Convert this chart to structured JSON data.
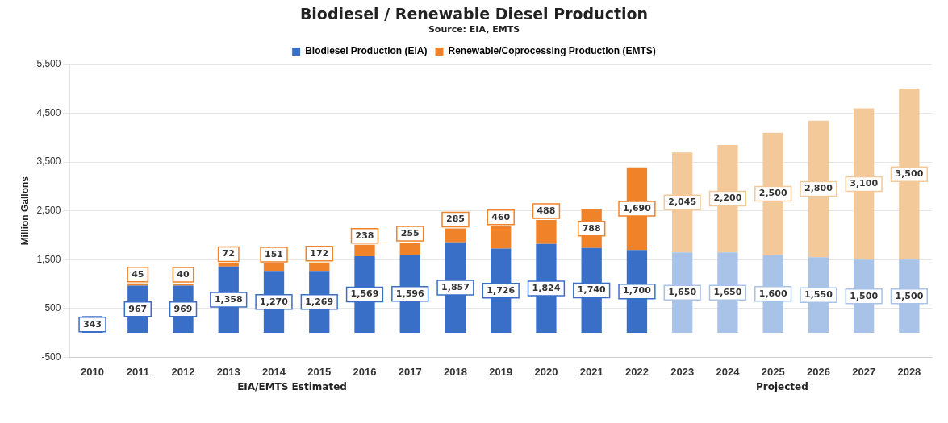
{
  "chart_data": {
    "type": "bar",
    "title": "Biodiesel / Renewable Diesel Production",
    "subtitle": "Source: EIA, EMTS",
    "ylabel": "Million Gallons",
    "categories": [
      "2010",
      "2011",
      "2012",
      "2013",
      "2014",
      "2015",
      "2016",
      "2017",
      "2018",
      "2019",
      "2020",
      "2021",
      "2022",
      "2023",
      "2024",
      "2025",
      "2026",
      "2027",
      "2028"
    ],
    "stacked": true,
    "grid": "y",
    "legend": "top",
    "ylim": [
      -500,
      5500
    ],
    "yticks": [
      {
        "value": -500,
        "label": "-500"
      },
      {
        "value": 500,
        "label": "500"
      },
      {
        "value": 1500,
        "label": "1,500"
      },
      {
        "value": 2500,
        "label": "2,500"
      },
      {
        "value": 3500,
        "label": "3,500"
      },
      {
        "value": 4500,
        "label": "4,500"
      },
      {
        "value": 5500,
        "label": "5,500"
      }
    ],
    "series": [
      {
        "name": "Biodiesel Production (EIA)",
        "color": "#3a6fc8",
        "colors": [
          "#3a6fc8",
          "#3a6fc8",
          "#3a6fc8",
          "#3a6fc8",
          "#3a6fc8",
          "#3a6fc8",
          "#3a6fc8",
          "#3a6fc8",
          "#3a6fc8",
          "#3a6fc8",
          "#3a6fc8",
          "#3a6fc8",
          "#3a6fc8",
          "#a9c3e8",
          "#a9c3e8",
          "#a9c3e8",
          "#a9c3e8",
          "#a9c3e8",
          "#a9c3e8"
        ],
        "values": [
          343,
          967,
          969,
          1358,
          1270,
          1269,
          1569,
          1596,
          1857,
          1726,
          1824,
          1740,
          1700,
          1650,
          1650,
          1600,
          1550,
          1500,
          1500
        ],
        "value_labels": [
          "343",
          "967",
          "969",
          "1,358",
          "1,270",
          "1,269",
          "1,569",
          "1,596",
          "1,857",
          "1,726",
          "1,824",
          "1,740",
          "1,700",
          "1,650",
          "1,650",
          "1,600",
          "1,550",
          "1,500",
          "1,500"
        ]
      },
      {
        "name": "Renewable/Coprocessing Production (EMTS)",
        "color": "#f0832a",
        "colors": [
          "#f0832a",
          "#f0832a",
          "#f0832a",
          "#f0832a",
          "#f0832a",
          "#f0832a",
          "#f0832a",
          "#f0832a",
          "#f0832a",
          "#f0832a",
          "#f0832a",
          "#f0832a",
          "#f0832a",
          "#f3c99a",
          "#f3c99a",
          "#f3c99a",
          "#f3c99a",
          "#f3c99a",
          "#f3c99a"
        ],
        "values": [
          null,
          45,
          40,
          72,
          151,
          172,
          238,
          255,
          285,
          460,
          488,
          788,
          1690,
          2045,
          2200,
          2500,
          2800,
          3100,
          3500
        ],
        "value_labels": [
          null,
          "45",
          "40",
          "72",
          "151",
          "172",
          "238",
          "255",
          "285",
          "460",
          "488",
          "788",
          "1,690",
          "2,045",
          "2,200",
          "2,500",
          "2,800",
          "3,100",
          "3,500"
        ]
      }
    ],
    "annotations": [
      "EIA/EMTS Estimated",
      "Projected"
    ]
  }
}
